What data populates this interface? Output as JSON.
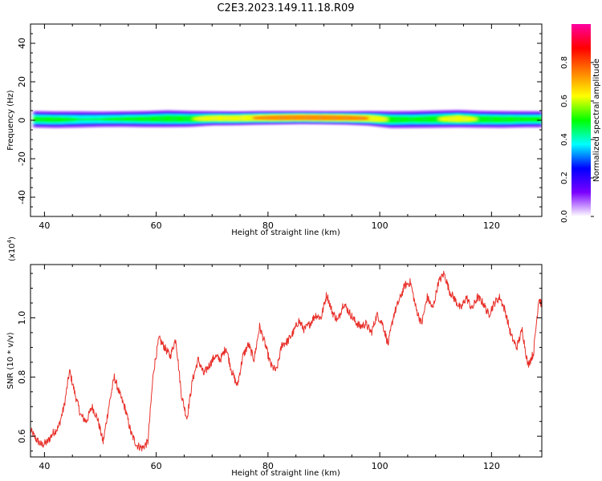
{
  "figure_title": "C2E3.2023.149.11.18.R09",
  "chart_data": [
    {
      "type": "heatmap",
      "title": "",
      "xlabel": "Height of straight line (km)",
      "ylabel": "Frequency (Hz)",
      "xlim": [
        37.5,
        129
      ],
      "ylim": [
        -50,
        50
      ],
      "xticks": [
        40,
        60,
        80,
        100,
        120
      ],
      "yticks": [
        -40,
        -20,
        0,
        20,
        40
      ],
      "colorbar": {
        "label": "Normalized spectral amplitude",
        "range": [
          0,
          1
        ],
        "ticks": [
          0.0,
          0.2,
          0.4,
          0.6,
          0.8
        ],
        "colormap": [
          "#ffffff",
          "#7b00ff",
          "#0000ff",
          "#00ffff",
          "#00ff00",
          "#ffff00",
          "#ff8000",
          "#ff0000",
          "#ff00a0"
        ]
      },
      "ridge": {
        "x": [
          38,
          42,
          46,
          50,
          54,
          58,
          62,
          66,
          70,
          74,
          78,
          82,
          86,
          90,
          94,
          98,
          102,
          106,
          110,
          114,
          118,
          122,
          126,
          129
        ],
        "center_freq": [
          0.5,
          0.3,
          0.4,
          0.5,
          0.6,
          0.6,
          0.8,
          0.7,
          1.0,
          1.0,
          1.2,
          1.3,
          1.4,
          1.3,
          1.2,
          1.0,
          0.3,
          0.4,
          0.6,
          0.8,
          0.5,
          0.4,
          0.5,
          0.5
        ],
        "peak_amplitude": [
          0.55,
          0.55,
          0.5,
          0.5,
          0.52,
          0.55,
          0.6,
          0.6,
          0.68,
          0.7,
          0.75,
          0.82,
          0.85,
          0.86,
          0.82,
          0.75,
          0.6,
          0.55,
          0.6,
          0.7,
          0.6,
          0.58,
          0.55,
          0.55
        ],
        "halfwidth_hz": [
          3.5,
          3.5,
          3.5,
          3.3,
          3.3,
          3.4,
          3.5,
          3.3,
          2.8,
          2.7,
          2.6,
          2.5,
          2.4,
          2.4,
          2.5,
          2.8,
          3.5,
          3.6,
          3.6,
          3.5,
          3.5,
          3.5,
          3.4,
          3.4
        ]
      }
    },
    {
      "type": "line",
      "title": "",
      "xlabel": "Height of straight line (km)",
      "ylabel": "SNR (10 * v/v)",
      "multiplier_label": "(x10",
      "multiplier_exp": "4",
      "xlim": [
        37.5,
        129
      ],
      "ylim": [
        0.53,
        1.18
      ],
      "xticks": [
        40,
        60,
        80,
        100,
        120
      ],
      "yticks": [
        0.6,
        0.8,
        1.0
      ],
      "line_color": "#e8302a",
      "series": [
        {
          "x": [
            37.5,
            38.5,
            39.5,
            40.5,
            41.5,
            42.5,
            43.5,
            44.5,
            45.5,
            46.5,
            47.5,
            48.5,
            49.5,
            50.5,
            51.5,
            52.5,
            53.5,
            54.5,
            55.5,
            56.5,
            57.5,
            58.5,
            59.5,
            60.5,
            61.5,
            62.5,
            63.5,
            64.5,
            65.5,
            66.5,
            67.5,
            68.5,
            69.5,
            70.5,
            71.5,
            72.5,
            73.5,
            74.5,
            75.5,
            76.5,
            77.5,
            78.5,
            79.5,
            80.5,
            81.5,
            82.5,
            83.5,
            84.5,
            85.5,
            86.5,
            87.5,
            88.5,
            89.5,
            90.5,
            91.5,
            92.5,
            93.5,
            94.5,
            95.5,
            96.5,
            97.5,
            98.5,
            99.5,
            100.5,
            101.5,
            102.5,
            103.5,
            104.5,
            105.5,
            106.5,
            107.5,
            108.5,
            109.5,
            110.5,
            111.5,
            112.5,
            113.5,
            114.5,
            115.5,
            116.5,
            117.5,
            118.5,
            119.5,
            120.5,
            121.5,
            122.5,
            123.5,
            124.5,
            125.5,
            126.5,
            127.5,
            128.5,
            129.0
          ],
          "values": [
            0.62,
            0.59,
            0.57,
            0.58,
            0.61,
            0.63,
            0.7,
            0.82,
            0.74,
            0.67,
            0.65,
            0.7,
            0.66,
            0.58,
            0.7,
            0.8,
            0.74,
            0.69,
            0.61,
            0.57,
            0.56,
            0.58,
            0.82,
            0.93,
            0.9,
            0.87,
            0.93,
            0.74,
            0.66,
            0.79,
            0.86,
            0.81,
            0.84,
            0.87,
            0.86,
            0.9,
            0.82,
            0.77,
            0.87,
            0.91,
            0.86,
            0.97,
            0.91,
            0.84,
            0.82,
            0.91,
            0.92,
            0.95,
            0.99,
            0.96,
            0.98,
            1.01,
            1.0,
            1.08,
            1.02,
            0.99,
            1.05,
            1.02,
            0.99,
            0.97,
            0.98,
            0.95,
            1.01,
            0.98,
            0.91,
            1.01,
            1.06,
            1.11,
            1.12,
            1.03,
            0.98,
            1.07,
            1.03,
            1.12,
            1.15,
            1.09,
            1.06,
            1.03,
            1.07,
            1.03,
            1.07,
            1.05,
            1.01,
            1.05,
            1.07,
            1.02,
            0.94,
            0.9,
            0.96,
            0.84,
            0.88,
            1.07,
            1.04
          ]
        }
      ]
    }
  ]
}
